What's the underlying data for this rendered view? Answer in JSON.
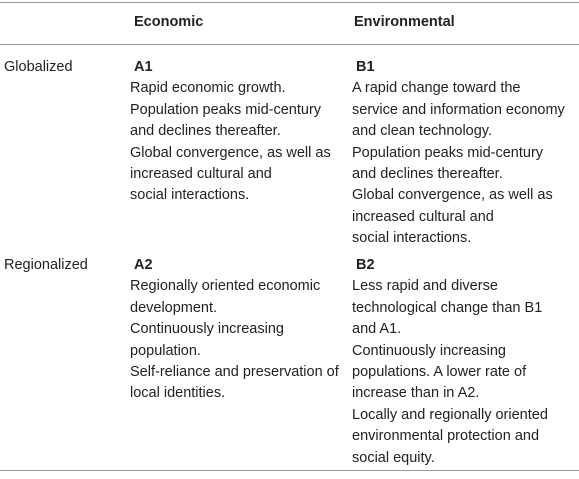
{
  "table": {
    "header": [
      "Economic",
      "Environmental"
    ],
    "rows": [
      {
        "label": "Globalized",
        "cells": [
          {
            "code": "A1",
            "items": [
              [
                "Rapid economic growth."
              ],
              [
                "Population peaks mid-century",
                "and declines thereafter."
              ],
              [
                "Global convergence, as well as",
                "increased cultural and",
                "social interactions."
              ]
            ]
          },
          {
            "code": "B1",
            "items": [
              [
                "A rapid change toward the",
                "service and information economy",
                "and clean technology."
              ],
              [
                "Population peaks mid-century",
                "and declines thereafter."
              ],
              [
                "Global convergence, as well as",
                "increased cultural and",
                "social interactions."
              ]
            ]
          }
        ]
      },
      {
        "label": "Regionalized",
        "cells": [
          {
            "code": "A2",
            "items": [
              [
                "Regionally oriented economic",
                "development."
              ],
              [
                "Continuously increasing",
                "population."
              ],
              [
                "Self-reliance and preservation of",
                "local identities."
              ]
            ]
          },
          {
            "code": "B2",
            "items": [
              [
                "Less rapid and diverse",
                "technological change than B1",
                "and A1."
              ],
              [
                "Continuously increasing",
                "populations. A lower rate of",
                "increase than in A2."
              ],
              [
                "Locally and regionally oriented",
                "environmental protection and",
                "social equity."
              ]
            ]
          }
        ]
      }
    ]
  }
}
